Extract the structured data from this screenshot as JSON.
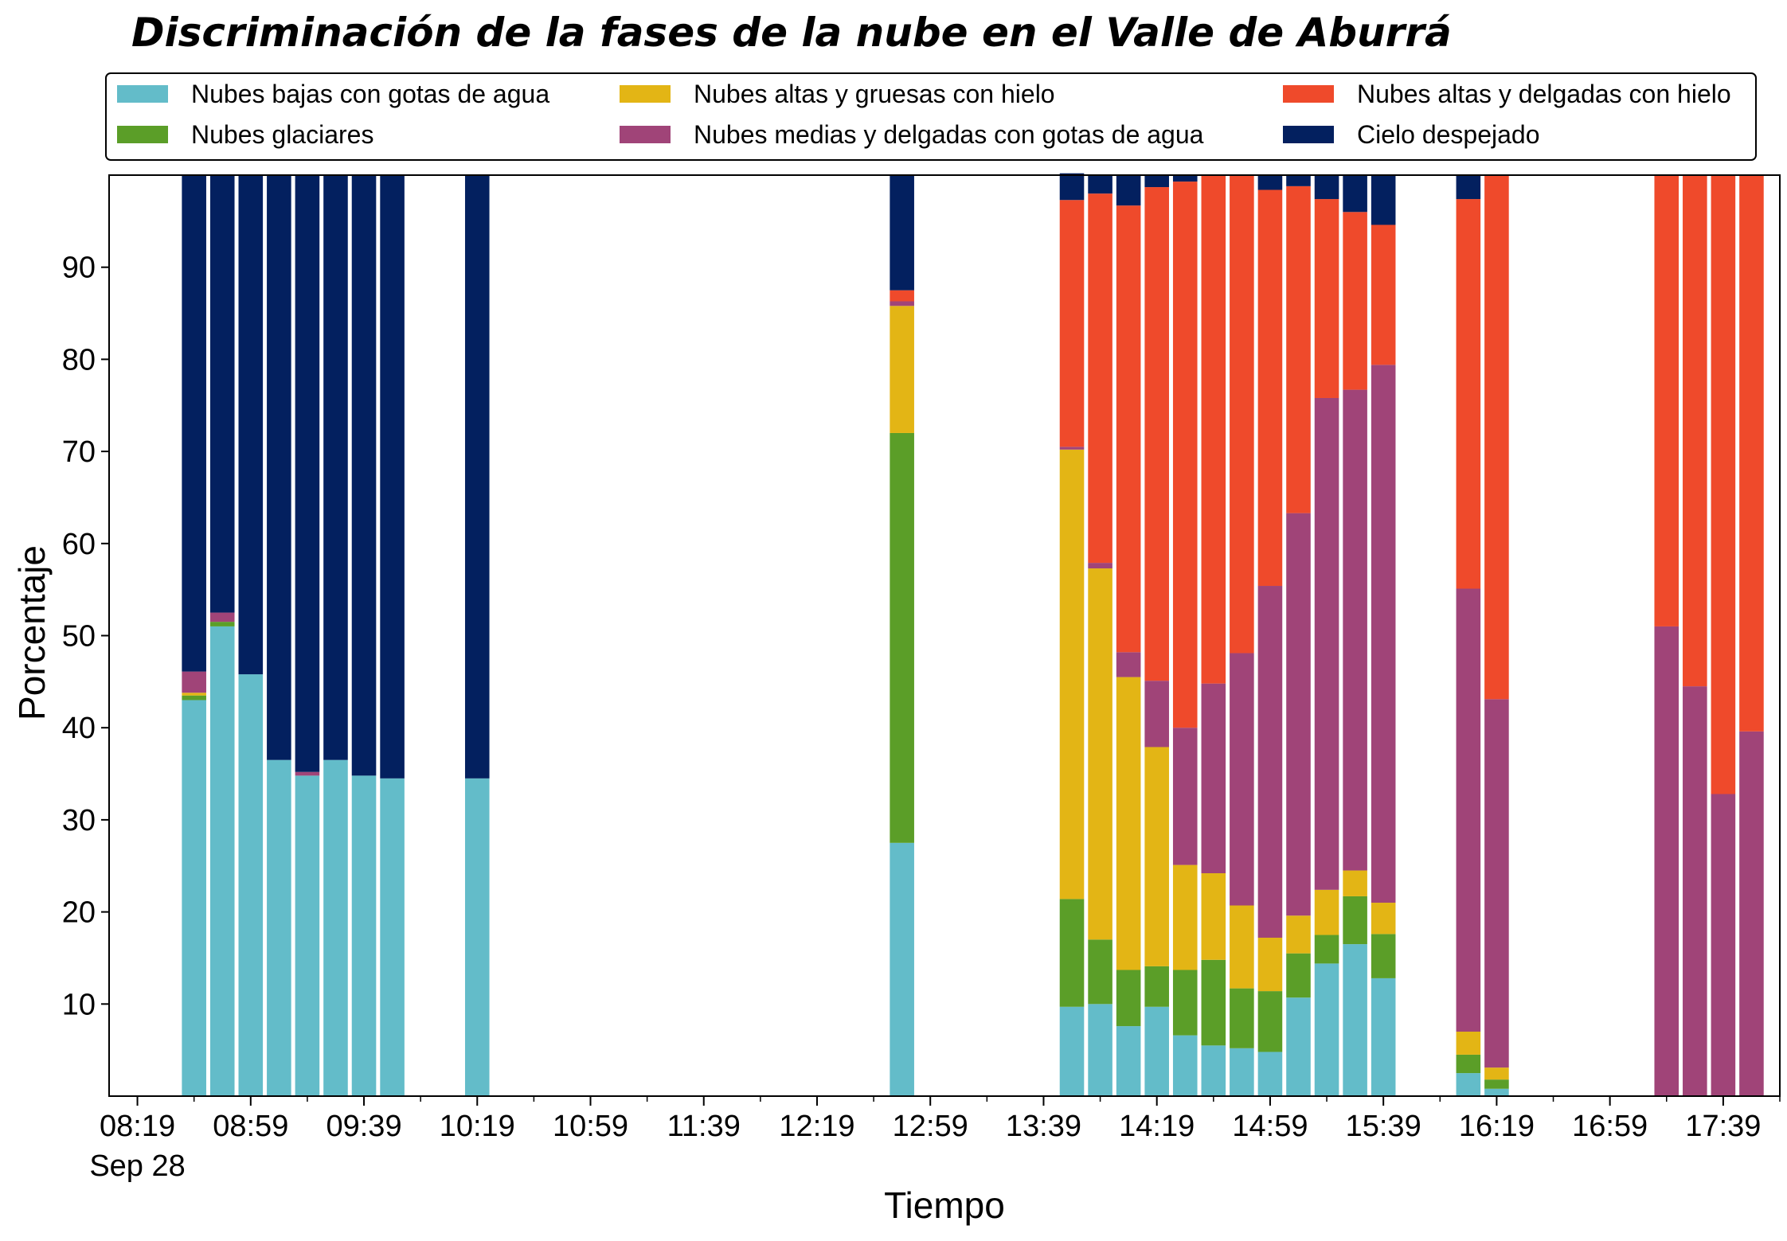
{
  "chart_data": {
    "type": "bar",
    "stacked": true,
    "title": "Discriminación de la fases de la nube en el Valle de Aburrá",
    "xlabel": "Tiempo",
    "ylabel": "Porcentaje",
    "ylim": [
      0,
      100
    ],
    "yticks": [
      10,
      20,
      30,
      40,
      50,
      60,
      70,
      80,
      90
    ],
    "xlim": [
      -1,
      58
    ],
    "xtick_labels": [
      {
        "pos": 0,
        "label": "08:19",
        "sublabel": "Sep 28"
      },
      {
        "pos": 4,
        "label": "08:59",
        "sublabel": ""
      },
      {
        "pos": 8,
        "label": "09:39",
        "sublabel": ""
      },
      {
        "pos": 12,
        "label": "10:19",
        "sublabel": ""
      },
      {
        "pos": 16,
        "label": "10:59",
        "sublabel": ""
      },
      {
        "pos": 20,
        "label": "11:39",
        "sublabel": ""
      },
      {
        "pos": 24,
        "label": "12:19",
        "sublabel": ""
      },
      {
        "pos": 28,
        "label": "12:59",
        "sublabel": ""
      },
      {
        "pos": 32,
        "label": "13:39",
        "sublabel": ""
      },
      {
        "pos": 36,
        "label": "14:19",
        "sublabel": ""
      },
      {
        "pos": 40,
        "label": "14:59",
        "sublabel": ""
      },
      {
        "pos": 44,
        "label": "15:39",
        "sublabel": ""
      },
      {
        "pos": 48,
        "label": "16:19",
        "sublabel": ""
      },
      {
        "pos": 52,
        "label": "16:59",
        "sublabel": ""
      },
      {
        "pos": 56,
        "label": "17:39",
        "sublabel": ""
      }
    ],
    "minor_tick_step": 2,
    "grid": false,
    "legend_placement": "top",
    "series": [
      {
        "name": "Nubes bajas con gotas de agua",
        "color": "#63bcc9"
      },
      {
        "name": "Nubes glaciares",
        "color": "#5b9e28"
      },
      {
        "name": "Nubes altas y gruesas con hielo",
        "color": "#e3b515"
      },
      {
        "name": "Nubes medias y delgadas con gotas de agua",
        "color": "#a04478"
      },
      {
        "name": "Nubes altas y delgadas con hielo",
        "color": "#ef4a2b"
      },
      {
        "name": "Cielo despejado",
        "color": "#03205f"
      }
    ],
    "bars": [
      {
        "x": 2,
        "values": [
          43,
          0.5,
          0.3,
          2.3,
          0,
          53.9
        ]
      },
      {
        "x": 3,
        "values": [
          51,
          0.5,
          0,
          1,
          0,
          47.5
        ]
      },
      {
        "x": 4,
        "values": [
          45.8,
          0,
          0,
          0,
          0,
          54.2
        ]
      },
      {
        "x": 5,
        "values": [
          36.5,
          0,
          0,
          0,
          0,
          63.5
        ]
      },
      {
        "x": 6,
        "values": [
          34.8,
          0,
          0,
          0.4,
          0,
          64.8
        ]
      },
      {
        "x": 7,
        "values": [
          36.5,
          0,
          0,
          0,
          0,
          63.5
        ]
      },
      {
        "x": 8,
        "values": [
          34.8,
          0,
          0,
          0,
          0,
          65.2
        ]
      },
      {
        "x": 9,
        "values": [
          34.5,
          0,
          0,
          0,
          0,
          65.5
        ]
      },
      {
        "x": 12,
        "values": [
          34.5,
          0,
          0,
          0,
          0,
          65.5
        ]
      },
      {
        "x": 27,
        "values": [
          27.5,
          44.5,
          13.8,
          0.5,
          1.2,
          12.5
        ]
      },
      {
        "x": 33,
        "values": [
          9.7,
          11.7,
          48.8,
          0.3,
          26.8,
          2.9
        ]
      },
      {
        "x": 34,
        "values": [
          10,
          7,
          40.3,
          0.6,
          40.1,
          2
        ]
      },
      {
        "x": 35,
        "values": [
          7.6,
          6.1,
          31.8,
          2.7,
          48.5,
          3.3
        ]
      },
      {
        "x": 36,
        "values": [
          9.7,
          4.4,
          23.8,
          7.2,
          53.6,
          1.3
        ]
      },
      {
        "x": 37,
        "values": [
          6.6,
          7.1,
          11.4,
          14.9,
          59.3,
          0.7
        ]
      },
      {
        "x": 38,
        "values": [
          5.5,
          9.3,
          9.4,
          20.6,
          55.2,
          0
        ]
      },
      {
        "x": 39,
        "values": [
          5.2,
          6.5,
          9,
          27.4,
          51.9,
          0
        ]
      },
      {
        "x": 40,
        "values": [
          4.8,
          6.6,
          5.8,
          38.2,
          43,
          1.6
        ]
      },
      {
        "x": 41,
        "values": [
          10.7,
          4.8,
          4.1,
          43.7,
          35.5,
          1.2
        ]
      },
      {
        "x": 42,
        "values": [
          14.4,
          3.1,
          4.9,
          53.4,
          21.6,
          2.6
        ]
      },
      {
        "x": 43,
        "values": [
          16.5,
          5.2,
          2.8,
          52.2,
          19.3,
          4
        ]
      },
      {
        "x": 44,
        "values": [
          12.8,
          4.8,
          3.4,
          58.4,
          15.2,
          5.4
        ]
      },
      {
        "x": 47,
        "values": [
          2.5,
          2,
          2.5,
          48.1,
          42.3,
          2.6
        ]
      },
      {
        "x": 48,
        "values": [
          0.8,
          1,
          1.3,
          40,
          56.9,
          0
        ]
      },
      {
        "x": 54,
        "values": [
          0,
          0,
          0,
          51,
          49,
          0
        ]
      },
      {
        "x": 55,
        "values": [
          0,
          0,
          0,
          44.5,
          55.5,
          0
        ]
      },
      {
        "x": 56,
        "values": [
          0,
          0,
          0,
          32.8,
          67.2,
          0
        ]
      },
      {
        "x": 57,
        "values": [
          0,
          0,
          0,
          39.6,
          60.4,
          0
        ]
      }
    ]
  }
}
